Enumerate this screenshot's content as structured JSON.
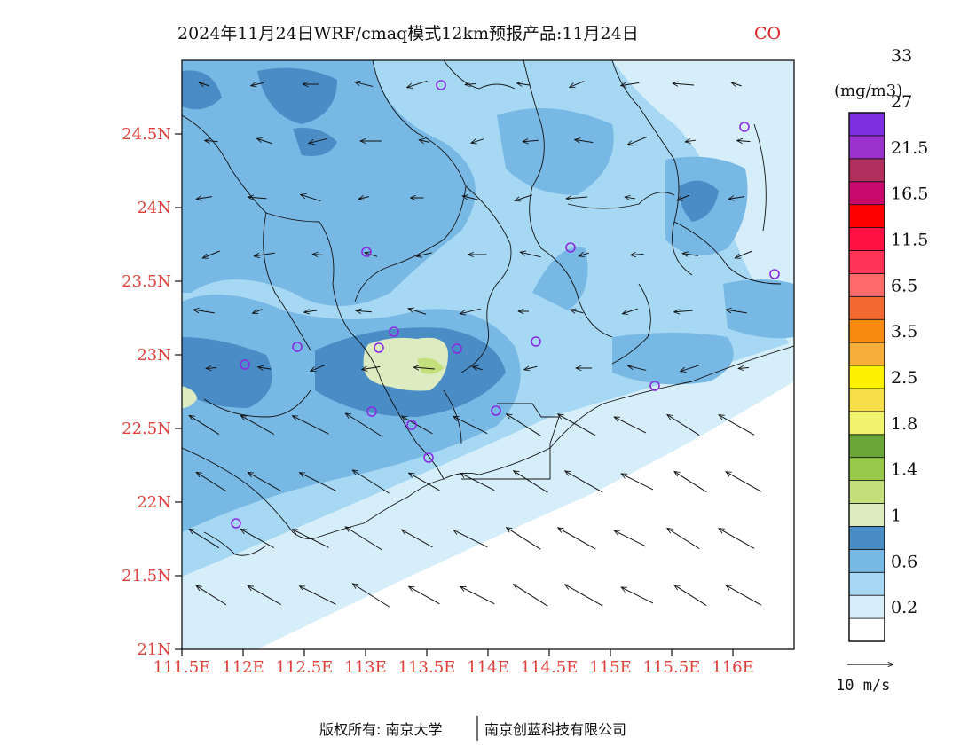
{
  "title": {
    "main": "2024年11月24日WRF/cmaq模式12km预报产品:11月24日",
    "species": "CO"
  },
  "axes": {
    "lat_range": [
      21,
      25
    ],
    "lon_range": [
      111.5,
      116.5
    ],
    "lat_ticks": [
      "21N",
      "21.5N",
      "22N",
      "22.5N",
      "23N",
      "23.5N",
      "24N",
      "24.5N"
    ],
    "lon_ticks": [
      "111.5E",
      "112E",
      "112.5E",
      "113E",
      "113.5E",
      "114E",
      "114.5E",
      "115E",
      "115.5E",
      "116E"
    ]
  },
  "colorbar": {
    "unit": "(mg/m3)",
    "labels": [
      "0.2",
      "0.6",
      "1",
      "1.4",
      "1.8",
      "2.5",
      "3.5",
      "6.5",
      "11.5",
      "16.5",
      "21.5",
      "27",
      "33"
    ],
    "colors": [
      "#ffffff",
      "#d6eefa",
      "#a6d8f4",
      "#78b8e4",
      "#4a8cc6",
      "#dcebc0",
      "#c3df7c",
      "#98c94a",
      "#6aa638",
      "#f1f36e",
      "#f7df4a",
      "#fff200",
      "#f7ae3a",
      "#f98c10",
      "#f26a32",
      "#ff6b6b",
      "#ff3355",
      "#ff1144",
      "#ff0000",
      "#c80a6e",
      "#b02d5c",
      "#9c32cc",
      "#7b2fe0"
    ]
  },
  "wind_legend": {
    "label": "10 m/s"
  },
  "copyright": {
    "text": "版权所有: 南京大学",
    "text2": "南京创蓝科技有限公司"
  },
  "stations_icon": "station-circle-icon"
}
